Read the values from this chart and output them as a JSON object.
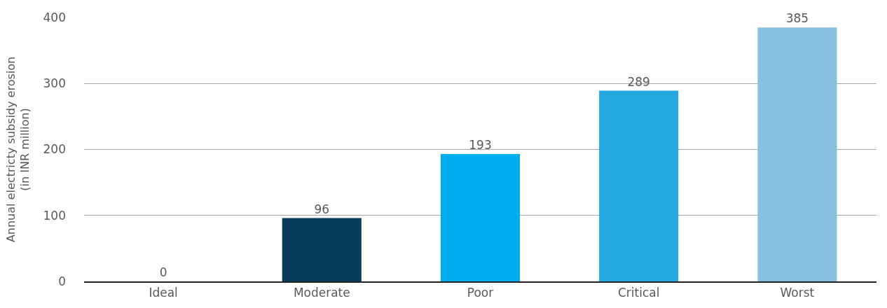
{
  "chart_data": {
    "type": "bar",
    "ylabel": "Annual electricty subsidy erosion\n(in INR million)",
    "categories": [
      "Ideal",
      "Moderate",
      "Poor",
      "Critical",
      "Worst"
    ],
    "values": [
      0,
      96,
      193,
      289,
      385
    ],
    "colors": [
      "#0a3a5c",
      "#093b5b",
      "#00aeef",
      "#25a8e0",
      "#86bfdf"
    ],
    "ylim": [
      0,
      400
    ],
    "yticks": [
      0,
      100,
      200,
      300,
      400
    ],
    "grid": "y",
    "data_labels": true
  }
}
